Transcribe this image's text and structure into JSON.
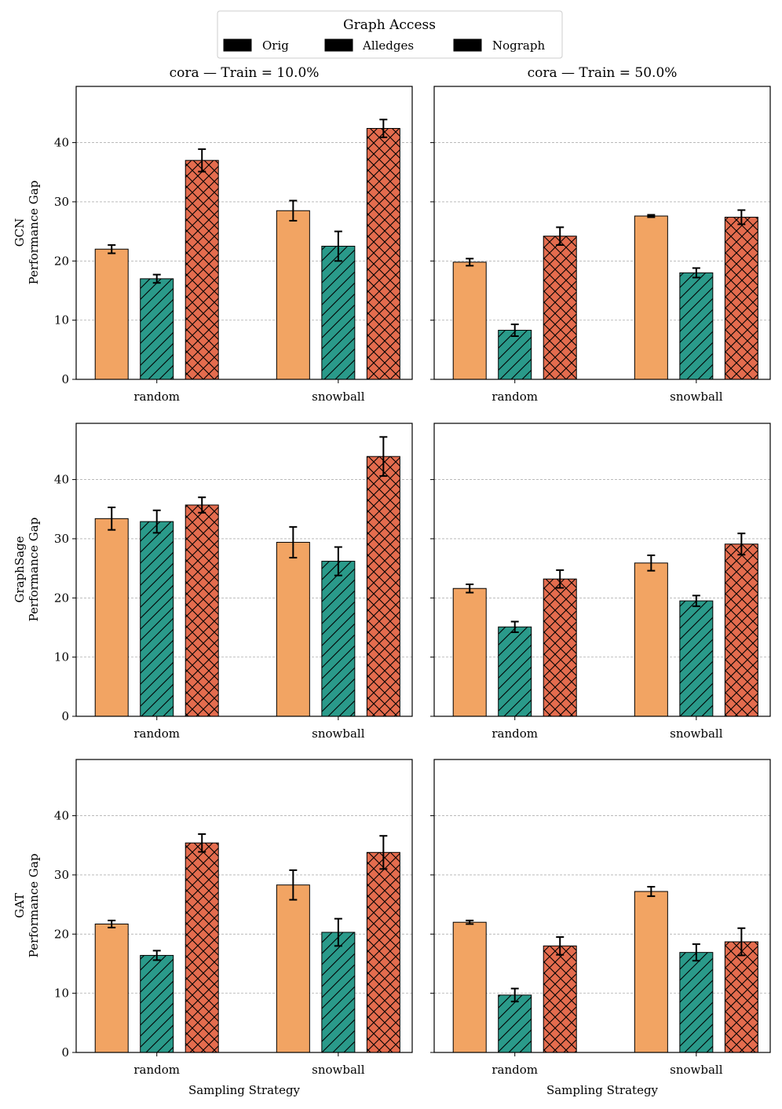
{
  "chart_data": {
    "type": "bar",
    "legend": {
      "title": "Graph Access",
      "placement": "top-center",
      "entries": [
        "Orig",
        "Alledges",
        "Nograph"
      ]
    },
    "series_colors": {
      "Orig": "#F2A463",
      "Alledges": "#2A9A8A",
      "Nograph": "#E46C4E"
    },
    "series_hatch": {
      "Orig": "none",
      "Alledges": "diagonal",
      "Nograph": "cross"
    },
    "categories": [
      "random",
      "snowball"
    ],
    "column_titles": [
      "cora — Train = 10.0%",
      "cora — Train = 50.0%"
    ],
    "row_ylabels": [
      [
        "GCN",
        "Performance Gap"
      ],
      [
        "GraphSage",
        "Performance Gap"
      ],
      [
        "GAT",
        "Performance Gap"
      ]
    ],
    "xlabel": "Sampling Strategy",
    "ylim": [
      0,
      49.5
    ],
    "yticks": [
      0,
      10,
      20,
      30,
      40
    ],
    "grid": "horizontal-dashed",
    "panels": [
      {
        "model": "GCN",
        "train": "10.0%",
        "series": [
          {
            "name": "Orig",
            "values": [
              22.0,
              28.5
            ],
            "errors": [
              0.7,
              1.7
            ]
          },
          {
            "name": "Alledges",
            "values": [
              17.0,
              22.5
            ],
            "errors": [
              0.7,
              2.5
            ]
          },
          {
            "name": "Nograph",
            "values": [
              37.0,
              42.4
            ],
            "errors": [
              1.9,
              1.5
            ]
          }
        ]
      },
      {
        "model": "GCN",
        "train": "50.0%",
        "series": [
          {
            "name": "Orig",
            "values": [
              19.8,
              27.6
            ],
            "errors": [
              0.6,
              0.2
            ]
          },
          {
            "name": "Alledges",
            "values": [
              8.3,
              18.0
            ],
            "errors": [
              1.0,
              0.8
            ]
          },
          {
            "name": "Nograph",
            "values": [
              24.2,
              27.4
            ],
            "errors": [
              1.5,
              1.2
            ]
          }
        ]
      },
      {
        "model": "GraphSage",
        "train": "10.0%",
        "series": [
          {
            "name": "Orig",
            "values": [
              33.4,
              29.4
            ],
            "errors": [
              1.9,
              2.6
            ]
          },
          {
            "name": "Alledges",
            "values": [
              32.9,
              26.2
            ],
            "errors": [
              1.9,
              2.4
            ]
          },
          {
            "name": "Nograph",
            "values": [
              35.7,
              43.9
            ],
            "errors": [
              1.3,
              3.3
            ]
          }
        ]
      },
      {
        "model": "GraphSage",
        "train": "50.0%",
        "series": [
          {
            "name": "Orig",
            "values": [
              21.6,
              25.9
            ],
            "errors": [
              0.7,
              1.3
            ]
          },
          {
            "name": "Alledges",
            "values": [
              15.1,
              19.5
            ],
            "errors": [
              0.9,
              0.9
            ]
          },
          {
            "name": "Nograph",
            "values": [
              23.2,
              29.1
            ],
            "errors": [
              1.5,
              1.8
            ]
          }
        ]
      },
      {
        "model": "GAT",
        "train": "10.0%",
        "series": [
          {
            "name": "Orig",
            "values": [
              21.7,
              28.3
            ],
            "errors": [
              0.6,
              2.5
            ]
          },
          {
            "name": "Alledges",
            "values": [
              16.4,
              20.3
            ],
            "errors": [
              0.8,
              2.3
            ]
          },
          {
            "name": "Nograph",
            "values": [
              35.4,
              33.8
            ],
            "errors": [
              1.5,
              2.8
            ]
          }
        ]
      },
      {
        "model": "GAT",
        "train": "50.0%",
        "series": [
          {
            "name": "Orig",
            "values": [
              22.0,
              27.2
            ],
            "errors": [
              0.3,
              0.8
            ]
          },
          {
            "name": "Alledges",
            "values": [
              9.7,
              16.9
            ],
            "errors": [
              1.1,
              1.4
            ]
          },
          {
            "name": "Nograph",
            "values": [
              18.0,
              18.7
            ],
            "errors": [
              1.5,
              2.3
            ]
          }
        ]
      }
    ]
  }
}
